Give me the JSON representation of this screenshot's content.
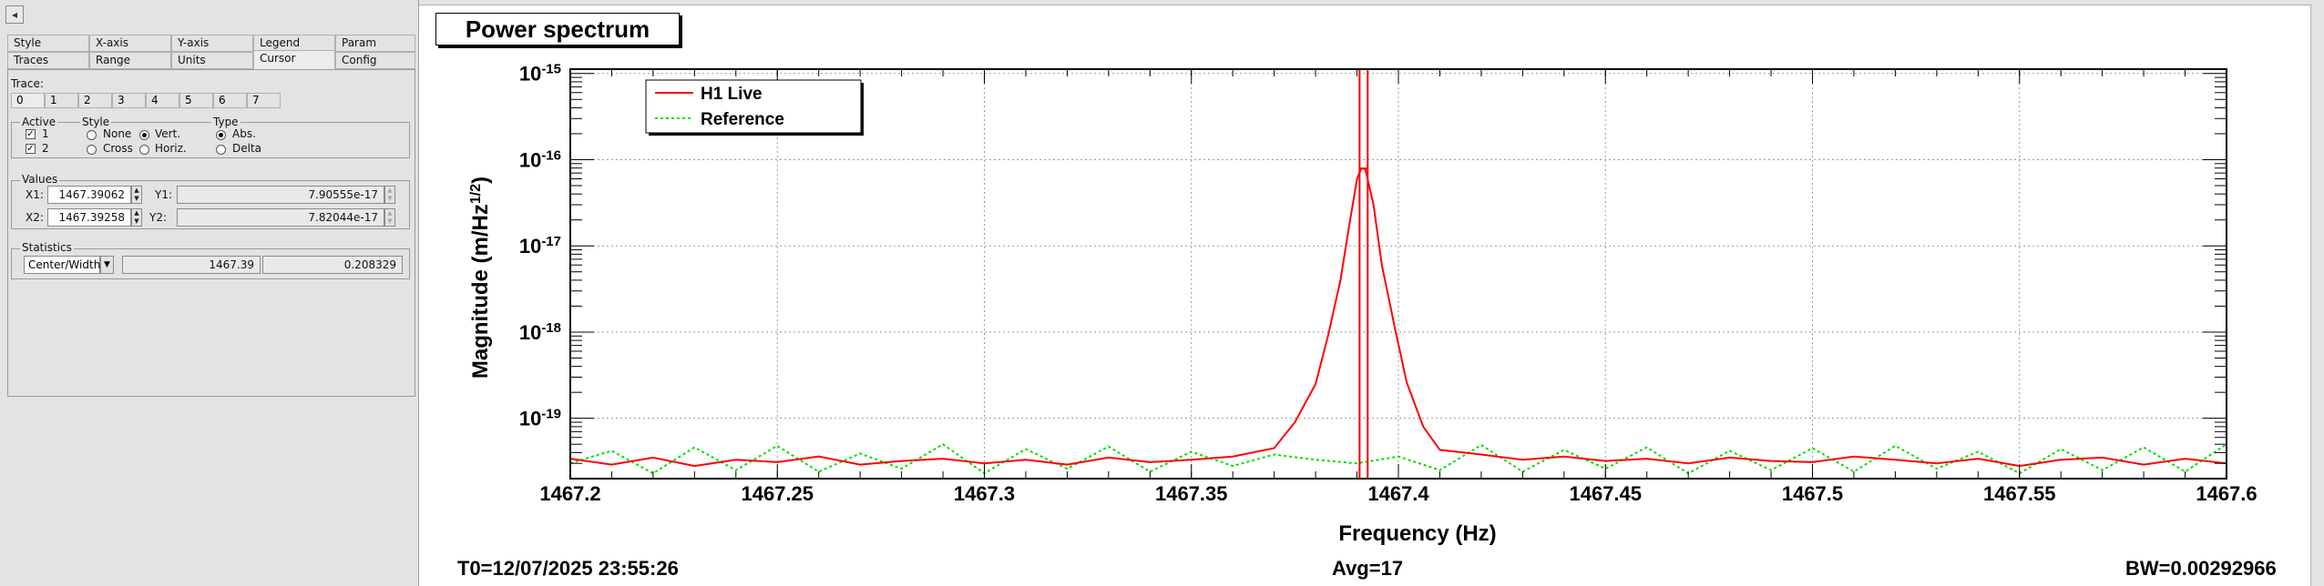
{
  "panel": {
    "collapse_icon": "◂",
    "tabs_row1": [
      "Style",
      "X-axis",
      "Y-axis",
      "Legend",
      "Param"
    ],
    "tabs_row2": [
      "Traces",
      "Range",
      "Units",
      "Cursor",
      "Config"
    ],
    "active_tab": "Cursor",
    "trace_label": "Trace:",
    "trace_tabs": [
      "0",
      "1",
      "2",
      "3",
      "4",
      "5",
      "6",
      "7"
    ],
    "active_group": {
      "title": "Active",
      "items": [
        {
          "label": "1",
          "checked": true
        },
        {
          "label": "2",
          "checked": true
        }
      ]
    },
    "style_group": {
      "title": "Style",
      "options": [
        {
          "label": "None",
          "selected": false
        },
        {
          "label": "Vert.",
          "selected": true
        },
        {
          "label": "Cross",
          "selected": false
        },
        {
          "label": "Horiz.",
          "selected": false
        }
      ]
    },
    "type_group": {
      "title": "Type",
      "options": [
        {
          "label": "Abs.",
          "selected": true
        },
        {
          "label": "Delta",
          "selected": false
        }
      ]
    },
    "values_group": {
      "title": "Values",
      "x1_label": "X1:",
      "x1_value": "1467.39062",
      "y1_label": "Y1:",
      "y1_value": "7.90555e-17",
      "x2_label": "X2:",
      "x2_value": "1467.39258",
      "y2_label": "Y2:",
      "y2_value": "7.82044e-17"
    },
    "statistics_group": {
      "title": "Statistics",
      "mode": "Center/Width",
      "center": "1467.39",
      "width": "0.208329"
    }
  },
  "plot": {
    "title": "Power spectrum",
    "footer_left": "T0=12/07/2025 23:55:26",
    "footer_center": "Avg=17",
    "footer_right": "BW=0.00292966"
  },
  "chart_data": {
    "type": "line",
    "xlabel": "Frequency (Hz)",
    "ylabel": "Magnitude (m/Hz",
    "ylabel_sup": "1/2",
    "ylabel_close": ")",
    "xlim": [
      1467.2,
      1467.6
    ],
    "ylim_log10": [
      -19.7,
      -14.95
    ],
    "yscale": "log",
    "grid": true,
    "legend_position": "top-left",
    "x_ticks": [
      "1467.2",
      "1467.25",
      "1467.3",
      "1467.35",
      "1467.4",
      "1467.45",
      "1467.5",
      "1467.55",
      "1467.6"
    ],
    "x_tick_values": [
      1467.2,
      1467.25,
      1467.3,
      1467.35,
      1467.4,
      1467.45,
      1467.5,
      1467.55,
      1467.6
    ],
    "y_tick_exponents": [
      -15,
      -16,
      -17,
      -18,
      -19
    ],
    "y_tick_base": "10",
    "cursors": [
      1467.39062,
      1467.39258
    ],
    "colors": {
      "h1_live": "#ff0000",
      "reference": "#00dd00"
    },
    "series": [
      {
        "name": "H1 Live",
        "peak_x": 1467.391,
        "baseline": 3.2e-20,
        "x": [
          1467.2,
          1467.21,
          1467.22,
          1467.23,
          1467.24,
          1467.25,
          1467.26,
          1467.27,
          1467.28,
          1467.29,
          1467.3,
          1467.31,
          1467.32,
          1467.33,
          1467.34,
          1467.35,
          1467.36,
          1467.37,
          1467.375,
          1467.38,
          1467.383,
          1467.386,
          1467.388,
          1467.39,
          1467.391,
          1467.392,
          1467.394,
          1467.396,
          1467.399,
          1467.402,
          1467.406,
          1467.41,
          1467.42,
          1467.43,
          1467.44,
          1467.45,
          1467.46,
          1467.47,
          1467.48,
          1467.49,
          1467.5,
          1467.51,
          1467.52,
          1467.53,
          1467.54,
          1467.55,
          1467.56,
          1467.57,
          1467.58,
          1467.59,
          1467.6
        ],
        "y": [
          3.4e-20,
          2.9e-20,
          3.5e-20,
          2.8e-20,
          3.3e-20,
          3.1e-20,
          3.6e-20,
          2.9e-20,
          3.2e-20,
          3.4e-20,
          3e-20,
          3.3e-20,
          2.9e-20,
          3.5e-20,
          3.1e-20,
          3.3e-20,
          3.6e-20,
          4.5e-20,
          9e-20,
          2.5e-19,
          9e-19,
          4e-18,
          1.6e-17,
          6e-17,
          7.9e-17,
          7.8e-17,
          3e-17,
          6e-18,
          1.2e-18,
          2.6e-19,
          8e-20,
          4.3e-20,
          3.8e-20,
          3.3e-20,
          3.6e-20,
          3.2e-20,
          3.4e-20,
          3e-20,
          3.5e-20,
          3.2e-20,
          3.1e-20,
          3.6e-20,
          3.3e-20,
          3e-20,
          3.4e-20,
          2.8e-20,
          3.3e-20,
          3.5e-20,
          2.9e-20,
          3.4e-20,
          3e-20
        ]
      },
      {
        "name": "Reference",
        "x": [
          1467.2,
          1467.21,
          1467.22,
          1467.23,
          1467.24,
          1467.25,
          1467.26,
          1467.27,
          1467.28,
          1467.29,
          1467.3,
          1467.31,
          1467.32,
          1467.33,
          1467.34,
          1467.35,
          1467.36,
          1467.37,
          1467.38,
          1467.39,
          1467.4,
          1467.41,
          1467.42,
          1467.43,
          1467.44,
          1467.45,
          1467.46,
          1467.47,
          1467.48,
          1467.49,
          1467.5,
          1467.51,
          1467.52,
          1467.53,
          1467.54,
          1467.55,
          1467.56,
          1467.57,
          1467.58,
          1467.59,
          1467.6
        ],
        "y": [
          3e-20,
          4.2e-20,
          2.3e-20,
          4.6e-20,
          2.5e-20,
          4.8e-20,
          2.4e-20,
          3.9e-20,
          2.6e-20,
          5e-20,
          2.3e-20,
          4.4e-20,
          2.6e-20,
          4.7e-20,
          2.4e-20,
          4.1e-20,
          2.8e-20,
          3.8e-20,
          3.3e-20,
          3e-20,
          3.6e-20,
          2.5e-20,
          4.9e-20,
          2.4e-20,
          4.3e-20,
          2.6e-20,
          4.6e-20,
          2.3e-20,
          4.2e-20,
          2.5e-20,
          4.5e-20,
          2.4e-20,
          4.8e-20,
          2.6e-20,
          4.1e-20,
          2.3e-20,
          4.4e-20,
          2.5e-20,
          4.6e-20,
          2.4e-20,
          5e-20
        ]
      }
    ]
  }
}
